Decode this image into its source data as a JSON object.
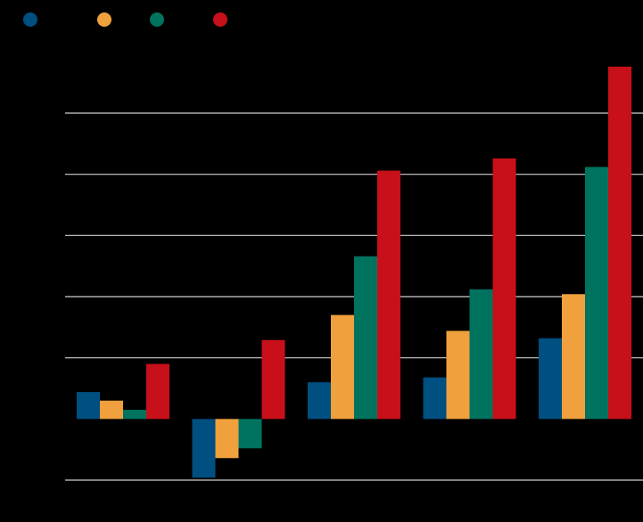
{
  "chart_data": {
    "type": "bar",
    "title": "",
    "xlabel": "",
    "ylabel": "",
    "categories": [
      "",
      "",
      "",
      "",
      ""
    ],
    "ylim": [
      -1,
      5
    ],
    "grid": true,
    "legend_position": "top-left",
    "series": [
      {
        "name": "",
        "color": "#004f81",
        "values": [
          0.44,
          -0.96,
          0.6,
          0.68,
          1.32
        ]
      },
      {
        "name": "",
        "color": "#f0a03c",
        "values": [
          0.3,
          -0.64,
          1.7,
          1.44,
          2.04
        ]
      },
      {
        "name": "",
        "color": "#00735f",
        "values": [
          0.15,
          -0.48,
          2.66,
          2.12,
          4.12
        ]
      },
      {
        "name": "",
        "color": "#c8101a",
        "values": [
          0.9,
          1.29,
          4.06,
          4.26,
          5.76
        ]
      }
    ]
  }
}
